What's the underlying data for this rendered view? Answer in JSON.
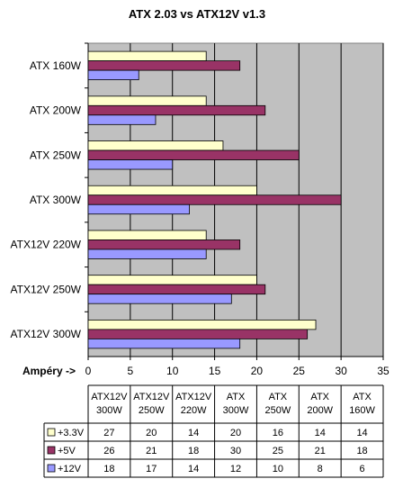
{
  "chart_data": {
    "type": "bar",
    "orientation": "horizontal",
    "title": "ATX 2.03 vs ATX12V v1.3",
    "xlabel": "Ampéry ->",
    "ylabel": "",
    "xlim": [
      0,
      35
    ],
    "xticks": [
      0,
      5,
      10,
      15,
      20,
      25,
      30,
      35
    ],
    "grid": true,
    "categories": [
      "ATX 160W",
      "ATX 200W",
      "ATX 250W",
      "ATX 300W",
      "ATX12V 220W",
      "ATX12V 250W",
      "ATX12V 300W"
    ],
    "series": [
      {
        "name": "+3.3V",
        "color": "#FFFFCC",
        "values": [
          14,
          14,
          16,
          20,
          14,
          20,
          27
        ]
      },
      {
        "name": "+5V",
        "color": "#993366",
        "values": [
          18,
          21,
          25,
          30,
          18,
          21,
          26
        ]
      },
      {
        "name": "+12V",
        "color": "#9999FF",
        "values": [
          6,
          8,
          10,
          12,
          14,
          17,
          18
        ]
      }
    ],
    "plot_background": "#C0C0C0",
    "data_table": {
      "columns": [
        [
          "ATX12V",
          "300W"
        ],
        [
          "ATX12V",
          "250W"
        ],
        [
          "ATX12V",
          "220W"
        ],
        [
          "ATX",
          "300W"
        ],
        [
          "ATX",
          "250W"
        ],
        [
          "ATX",
          "200W"
        ],
        [
          "ATX",
          "160W"
        ]
      ],
      "rows": [
        {
          "name": "+3.3V",
          "values": [
            27,
            20,
            14,
            20,
            16,
            14,
            14
          ]
        },
        {
          "name": "+5V",
          "values": [
            26,
            21,
            18,
            30,
            25,
            21,
            18
          ]
        },
        {
          "name": "+12V",
          "values": [
            18,
            17,
            14,
            12,
            10,
            8,
            6
          ]
        }
      ]
    }
  }
}
